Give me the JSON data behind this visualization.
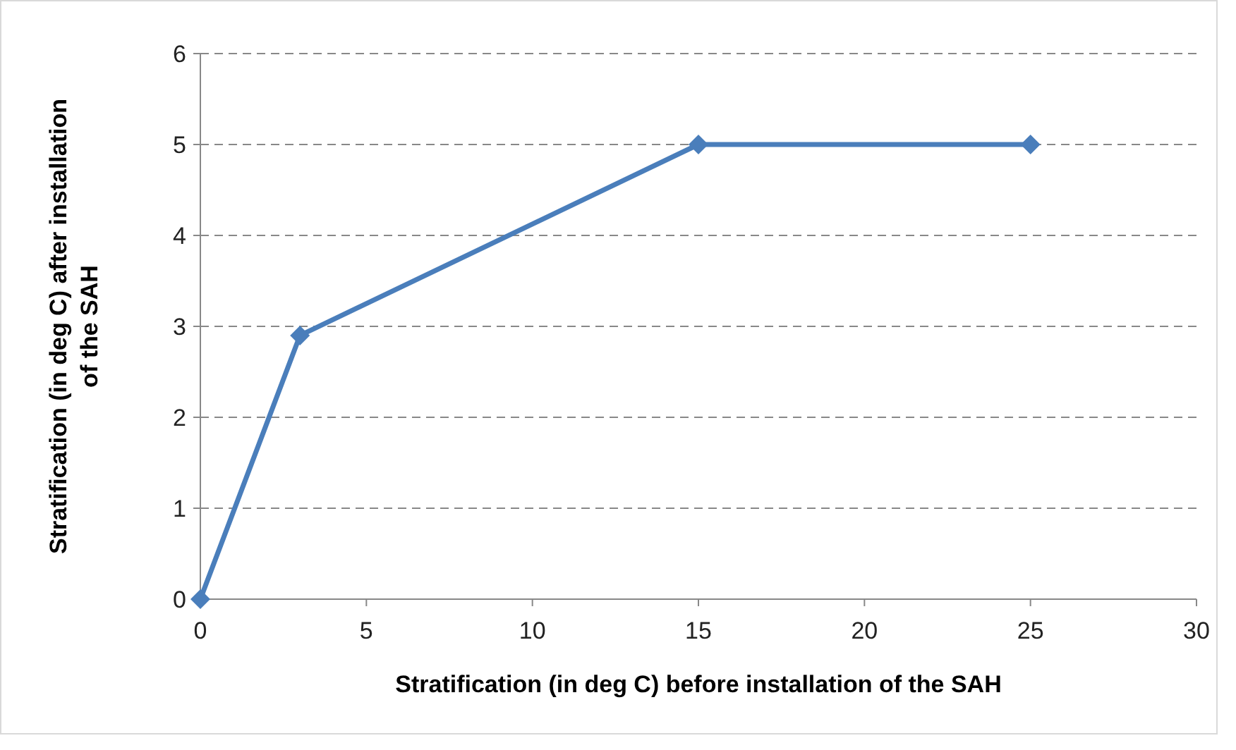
{
  "chart_data": {
    "type": "line",
    "xlabel": "Stratification (in deg C) before installation of the SAH",
    "ylabel": "Stratification (in deg C) after installation of the SAH",
    "x": [
      0,
      3,
      15,
      25
    ],
    "series": [
      {
        "color": "#4a7ebb",
        "values": [
          0,
          2.9,
          5,
          5
        ]
      }
    ],
    "xlim": [
      0,
      30
    ],
    "xticks": [
      0,
      5,
      10,
      15,
      20,
      25,
      30
    ],
    "ylim": [
      0,
      6
    ],
    "yticks": [
      0,
      1,
      2,
      3,
      4,
      5,
      6
    ],
    "grid": "y",
    "marker": "diamond",
    "line_style": "solid"
  }
}
